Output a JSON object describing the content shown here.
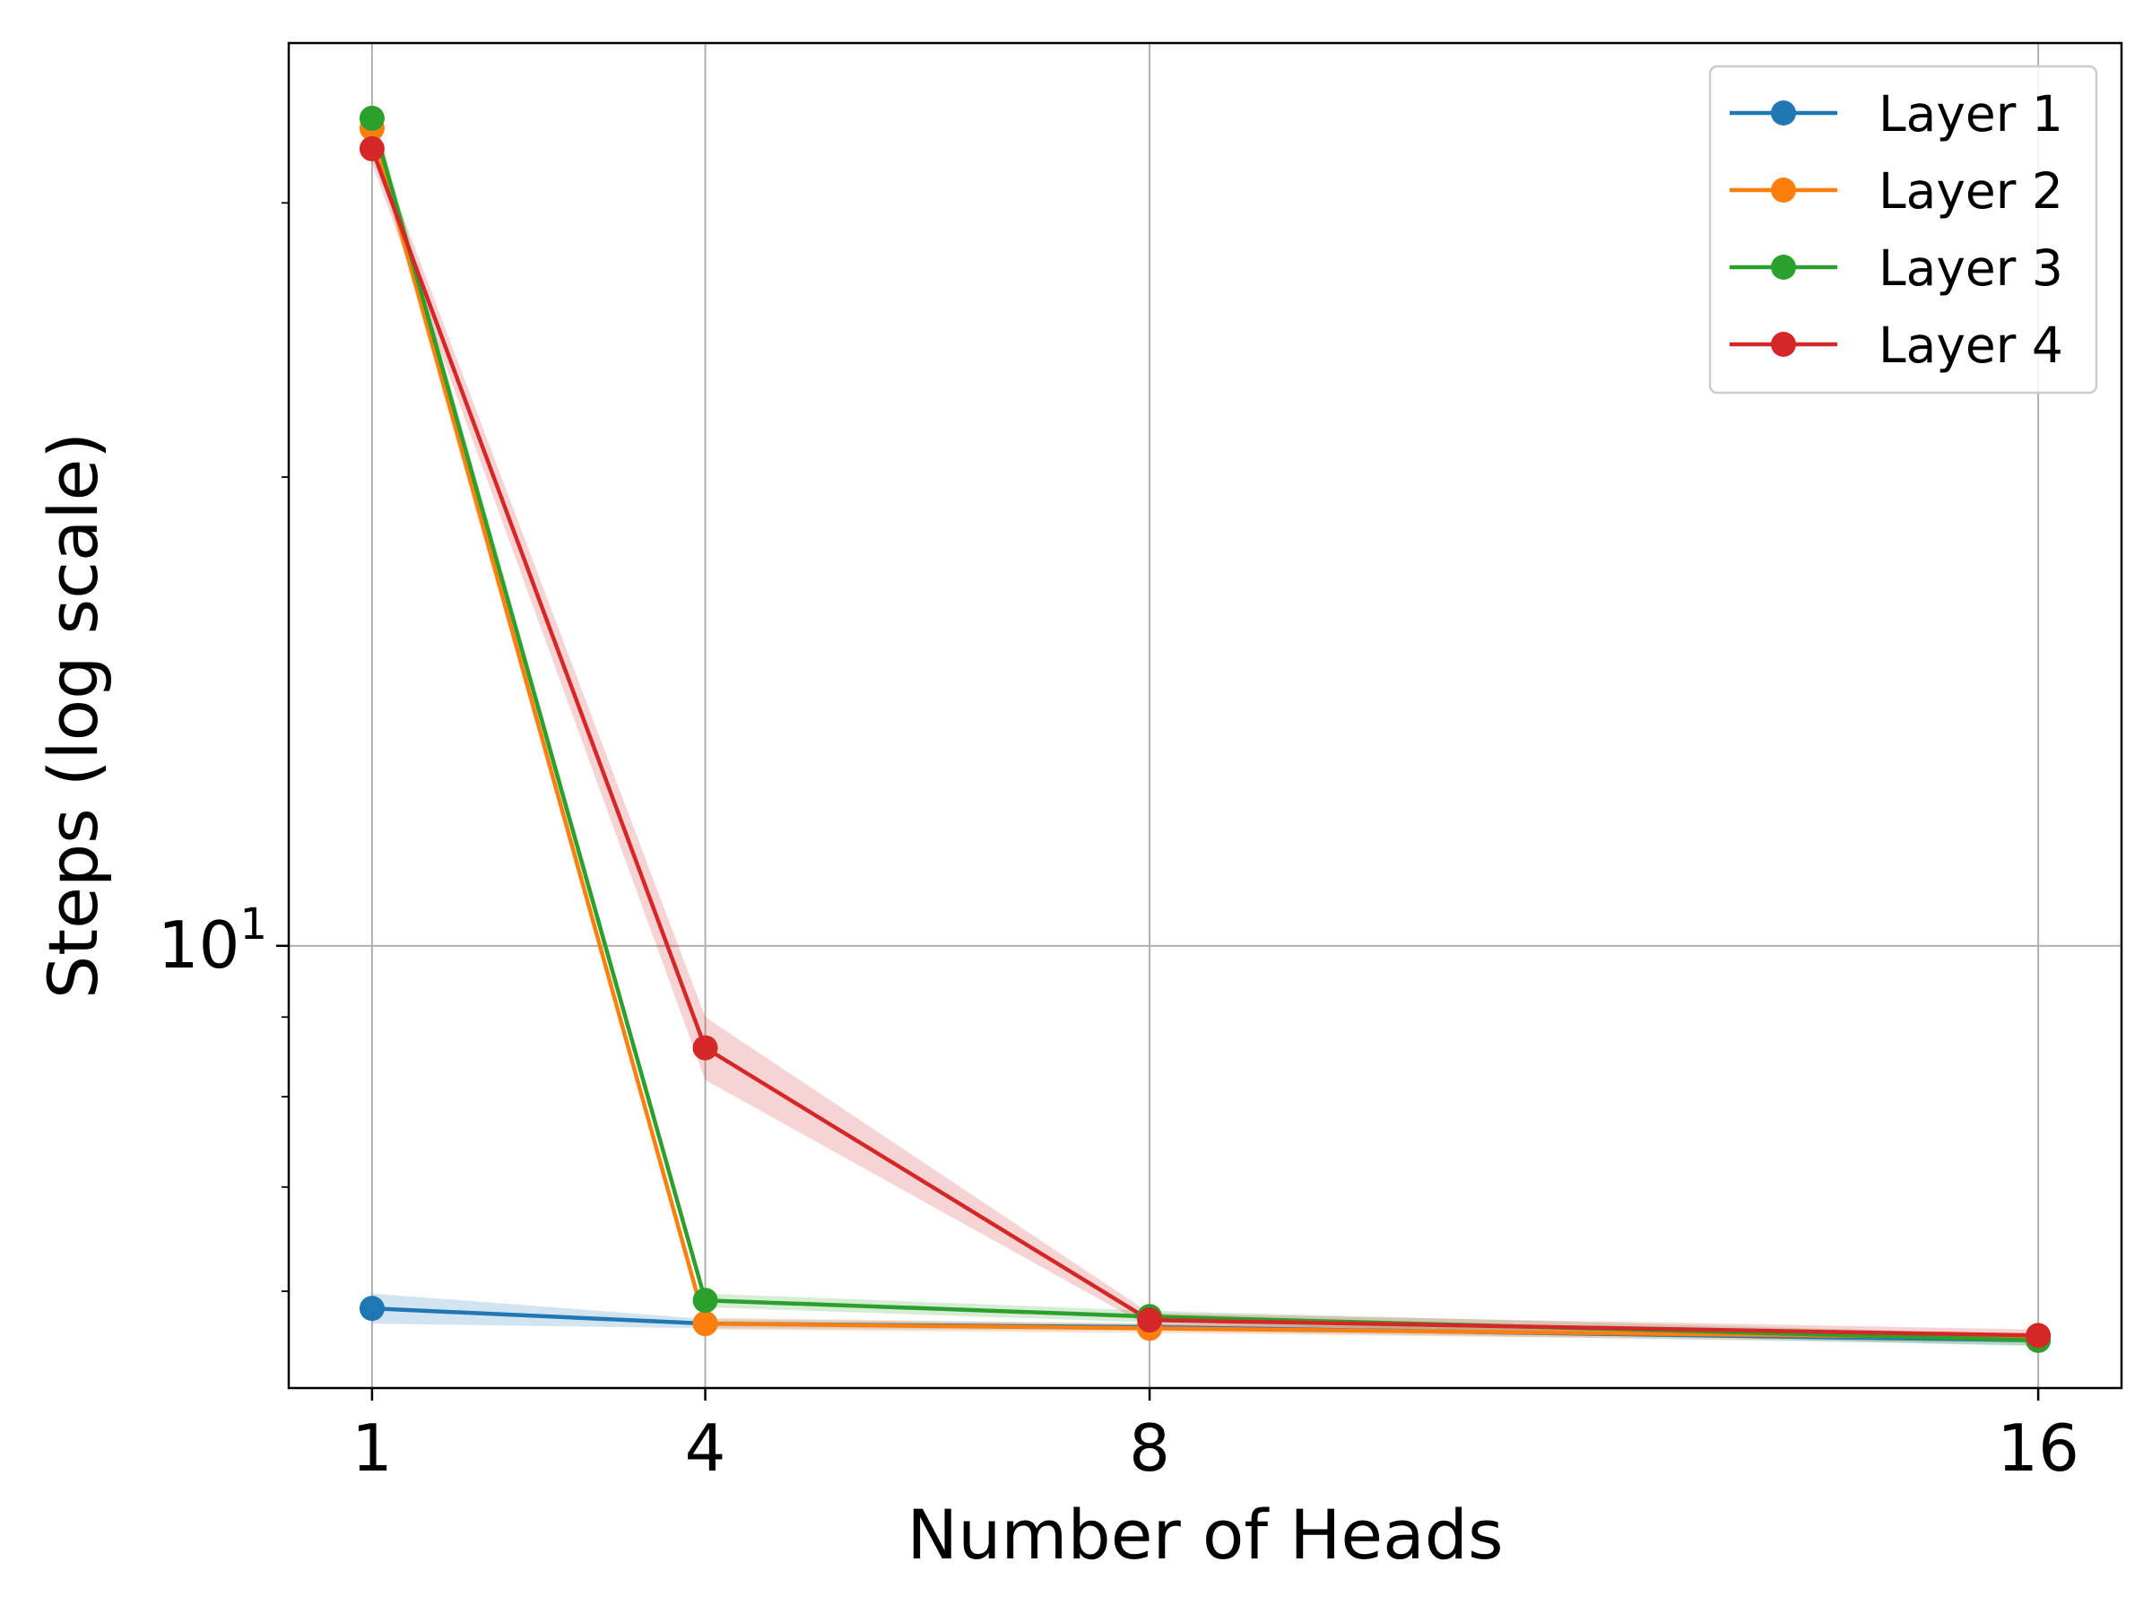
{
  "chart_data": {
    "type": "line",
    "xlabel": "Number of Heads",
    "ylabel": "Steps (log scale)",
    "x": [
      1,
      4,
      8,
      16
    ],
    "xticks": [
      "1",
      "4",
      "8",
      "16"
    ],
    "xlim": [
      0.25,
      16.75
    ],
    "yscale": "log",
    "ylim": [
      5.2,
      38
    ],
    "yticks": [
      {
        "value": 10,
        "base": "10",
        "exp": "1"
      }
    ],
    "grid": true,
    "legend_position": "top-right",
    "series": [
      {
        "name": "Layer 1",
        "color": "#1f77b4",
        "values": [
          5.85,
          5.72,
          5.69,
          5.58
        ],
        "band": [
          0.13,
          0.04,
          0.03,
          0.04
        ]
      },
      {
        "name": "Layer 2",
        "color": "#ff7f0e",
        "values": [
          33.5,
          5.72,
          5.68,
          5.6
        ],
        "band": [
          0.6,
          0.05,
          0.04,
          0.04
        ]
      },
      {
        "name": "Layer 3",
        "color": "#2ca02c",
        "values": [
          34.0,
          5.92,
          5.78,
          5.58
        ],
        "band": [
          0.6,
          0.06,
          0.05,
          0.05
        ]
      },
      {
        "name": "Layer 4",
        "color": "#d62728",
        "values": [
          32.5,
          8.6,
          5.75,
          5.62
        ],
        "band": [
          0.7,
          0.4,
          0.06,
          0.05
        ]
      }
    ]
  }
}
